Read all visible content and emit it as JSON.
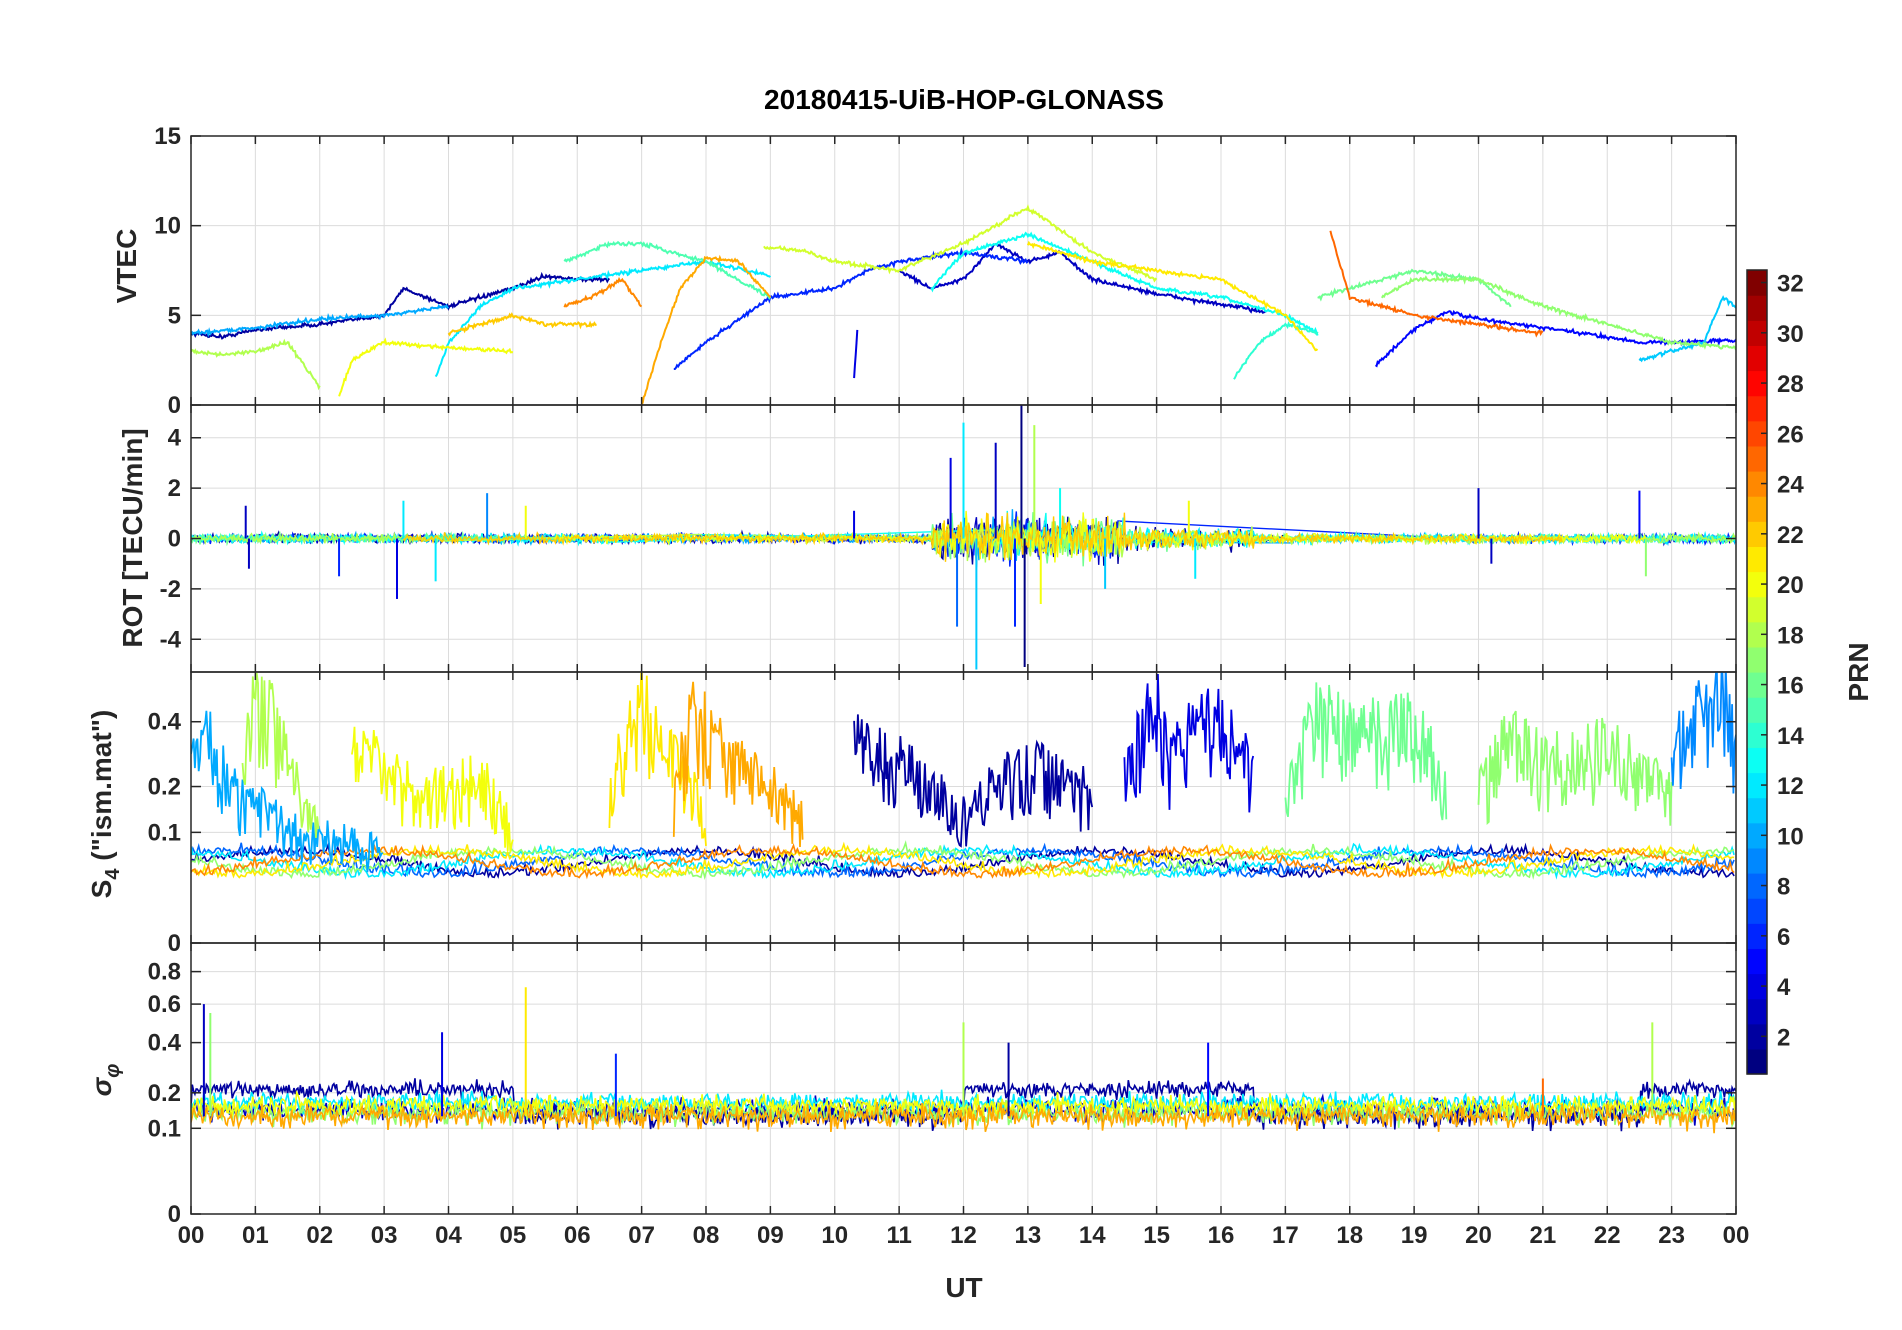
{
  "title": "20180415-UiB-HOP-GLONASS",
  "colors": {
    "axis": "#262626",
    "grid": "#dcdcdc",
    "background": "#ffffff"
  },
  "chart_data": [
    {
      "id": "vtec",
      "type": "line",
      "ylabel": "VTEC",
      "ylim": [
        0,
        15
      ],
      "yticks": [
        "0",
        "5",
        "10",
        "15"
      ],
      "ytick_values": [
        0,
        5,
        10,
        15
      ],
      "legend": "colorbar PRN",
      "series": [
        {
          "name": "PRN 2",
          "prn": 2,
          "x": [
            0,
            0.5,
            1,
            2,
            3,
            3.3,
            4,
            5,
            5.5,
            6,
            6.5
          ],
          "y": [
            4.0,
            3.8,
            4.2,
            4.5,
            5.0,
            6.5,
            5.5,
            6.5,
            7.2,
            7.0,
            7.0
          ]
        },
        {
          "name": "PRN 3",
          "prn": 3,
          "x": [
            11.0,
            11.5,
            12.0,
            12.5,
            13.0,
            13.5,
            14.0,
            15.0,
            16.0,
            16.7
          ],
          "y": [
            7.5,
            6.5,
            7.0,
            9.0,
            8.0,
            8.5,
            7.0,
            6.2,
            5.6,
            5.2
          ]
        },
        {
          "name": "PRN 4",
          "prn": 4,
          "x": [
            10.3,
            10.35
          ],
          "y": [
            1.5,
            4.2
          ]
        },
        {
          "name": "PRN 5",
          "prn": 5,
          "x": [
            18.4,
            19.0,
            19.5,
            20.0,
            21.0,
            22.0,
            22.5,
            23.0,
            24.0
          ],
          "y": [
            2.2,
            4.2,
            5.2,
            4.8,
            4.3,
            3.8,
            3.5,
            3.5,
            3.6
          ]
        },
        {
          "name": "PRN 6",
          "prn": 6,
          "x": [
            7.5,
            8.0,
            9.0,
            10.0,
            10.5,
            11.0,
            12.0,
            13.0
          ],
          "y": [
            2.0,
            3.5,
            6.0,
            6.5,
            7.5,
            8.0,
            8.5,
            8.0
          ]
        },
        {
          "name": "PRN 10",
          "prn": 10,
          "x": [
            0,
            1.0,
            2.0,
            3.0,
            4.0
          ],
          "y": [
            4.0,
            4.3,
            4.8,
            5.0,
            5.5
          ]
        },
        {
          "name": "PRN 11",
          "prn": 11,
          "x": [
            22.5,
            23.0,
            23.5,
            23.8,
            24.0
          ],
          "y": [
            2.5,
            3.0,
            3.5,
            6.0,
            5.5
          ]
        },
        {
          "name": "PRN 12",
          "prn": 12,
          "x": [
            3.8,
            4.0,
            4.5,
            5.0,
            6.0,
            7.0,
            8.0,
            9.0
          ],
          "y": [
            1.5,
            3.5,
            5.5,
            6.5,
            7.0,
            7.5,
            8.0,
            7.2
          ]
        },
        {
          "name": "PRN 13",
          "prn": 13,
          "x": [
            11.5,
            12.0,
            13.0,
            14.0,
            15.0,
            16.0,
            17.0,
            17.5
          ],
          "y": [
            6.5,
            8.5,
            9.5,
            8.0,
            6.5,
            6.0,
            5.0,
            4.0
          ]
        },
        {
          "name": "PRN 14",
          "prn": 14,
          "x": [
            16.2,
            16.6,
            17.0,
            17.5
          ],
          "y": [
            1.5,
            3.5,
            4.5,
            4.0
          ]
        },
        {
          "name": "PRN 15",
          "prn": 15,
          "x": [
            5.8,
            6.5,
            7.0,
            7.5,
            8.0,
            9.0
          ],
          "y": [
            8.0,
            9.0,
            9.0,
            8.5,
            8.0,
            6.0
          ]
        },
        {
          "name": "PRN 16",
          "prn": 16,
          "x": [
            17.5,
            18.0,
            19.0,
            20.0,
            20.5
          ],
          "y": [
            6.0,
            6.5,
            7.5,
            7.0,
            5.5
          ]
        },
        {
          "name": "PRN 17",
          "prn": 17,
          "x": [
            18.5,
            19.0,
            20.0,
            21.0,
            22.0,
            23.0,
            24.0
          ],
          "y": [
            6.0,
            7.0,
            7.0,
            5.5,
            4.5,
            3.5,
            3.2
          ]
        },
        {
          "name": "PRN 18",
          "prn": 18,
          "x": [
            0,
            0.5,
            1.0,
            1.5,
            2.0
          ],
          "y": [
            3.0,
            2.8,
            3.0,
            3.5,
            1.0
          ]
        },
        {
          "name": "PRN 19",
          "prn": 19,
          "x": [
            8.9,
            9.5,
            10.0,
            11.0,
            12.0,
            13.0,
            14.0,
            15.0
          ],
          "y": [
            8.8,
            8.6,
            8.0,
            7.5,
            9.0,
            11.0,
            8.5,
            7.0
          ]
        },
        {
          "name": "PRN 20",
          "prn": 20,
          "x": [
            2.3,
            2.5,
            3.0,
            4.0,
            5.0
          ],
          "y": [
            0.5,
            2.5,
            3.5,
            3.2,
            3.0
          ]
        },
        {
          "name": "PRN 21",
          "prn": 21,
          "x": [
            13.0,
            14.0,
            15.0,
            16.0,
            17.0,
            17.5
          ],
          "y": [
            9.0,
            8.0,
            7.5,
            7.0,
            5.0,
            3.0
          ]
        },
        {
          "name": "PRN 22",
          "prn": 22,
          "x": [
            4.0,
            4.5,
            5.0,
            5.5,
            6.0,
            6.3
          ],
          "y": [
            4.0,
            4.5,
            5.0,
            4.5,
            4.5,
            4.5
          ]
        },
        {
          "name": "PRN 23",
          "prn": 23,
          "x": [
            7.0,
            7.3,
            7.6,
            8.0,
            8.5,
            9.0
          ],
          "y": [
            0.0,
            3.5,
            6.5,
            8.2,
            8.0,
            6.0
          ]
        },
        {
          "name": "PRN 24",
          "prn": 24,
          "x": [
            5.8,
            6.2,
            6.7,
            7.0
          ],
          "y": [
            5.5,
            6.0,
            7.0,
            5.5
          ]
        },
        {
          "name": "PRN 25",
          "prn": 25,
          "x": [
            17.7,
            18.0,
            19.0,
            20.0,
            21.0
          ],
          "y": [
            9.7,
            6.0,
            5.0,
            4.5,
            4.0
          ]
        }
      ]
    },
    {
      "id": "rot",
      "type": "line",
      "ylabel": "ROT [TECU/min]",
      "ylim": [
        -5.3,
        5.3
      ],
      "yticks": [
        "-4",
        "-2",
        "0",
        "2",
        "4"
      ],
      "ytick_values": [
        -4,
        -2,
        0,
        2,
        4
      ],
      "spikes": [
        {
          "prn": 3,
          "x": 0.85,
          "y": 1.3
        },
        {
          "prn": 3,
          "x": 0.9,
          "y": -1.2
        },
        {
          "prn": 6,
          "x": 2.3,
          "y": -1.5
        },
        {
          "prn": 4,
          "x": 3.2,
          "y": -2.4
        },
        {
          "prn": 12,
          "x": 3.3,
          "y": 1.5
        },
        {
          "prn": 12,
          "x": 3.8,
          "y": -1.7
        },
        {
          "prn": 9,
          "x": 4.6,
          "y": 1.8
        },
        {
          "prn": 20,
          "x": 5.2,
          "y": 1.3
        },
        {
          "prn": 4,
          "x": 10.3,
          "y": 1.1
        },
        {
          "prn": 4,
          "x": 11.8,
          "y": 3.2
        },
        {
          "prn": 8,
          "x": 11.9,
          "y": -3.5
        },
        {
          "prn": 12,
          "x": 12.0,
          "y": 4.6
        },
        {
          "prn": 11,
          "x": 12.2,
          "y": -5.2
        },
        {
          "prn": 3,
          "x": 12.5,
          "y": 3.8
        },
        {
          "prn": 6,
          "x": 12.8,
          "y": -3.5
        },
        {
          "prn": 1,
          "x": 12.9,
          "y": 5.3
        },
        {
          "prn": 1,
          "x": 12.95,
          "y": -5.1
        },
        {
          "prn": 18,
          "x": 13.1,
          "y": 4.5
        },
        {
          "prn": 20,
          "x": 13.2,
          "y": -2.6
        },
        {
          "prn": 13,
          "x": 13.5,
          "y": 2.0
        },
        {
          "prn": 11,
          "x": 14.2,
          "y": -2.0
        },
        {
          "prn": 20,
          "x": 15.5,
          "y": 1.5
        },
        {
          "prn": 12,
          "x": 15.6,
          "y": -1.6
        },
        {
          "prn": 3,
          "x": 20.0,
          "y": 2.0
        },
        {
          "prn": 3,
          "x": 20.2,
          "y": -1.0
        },
        {
          "prn": 5,
          "x": 22.5,
          "y": 1.9
        },
        {
          "prn": 17,
          "x": 22.6,
          "y": -1.5
        }
      ]
    },
    {
      "id": "s4",
      "type": "line",
      "ylabel": "S4 (\"ism.mat\")",
      "ylabel_base": "S",
      "ylabel_sub": "4",
      "ylabel_suffix": " (\"ism.mat\")",
      "ylim": [
        0,
        0.6
      ],
      "yscale": "sqrt",
      "yticks": [
        "0",
        "0.1",
        "0.2",
        "0.4"
      ],
      "ytick_values": [
        0,
        0.1,
        0.2,
        0.4
      ],
      "series_summary": [
        {
          "prn": 10,
          "x": [
            0,
            0.3,
            0.6,
            1.5,
            3.0
          ],
          "y": [
            0.3,
            0.4,
            0.22,
            0.12,
            0.08
          ]
        },
        {
          "prn": 18,
          "x": [
            0.8,
            1.0,
            1.2,
            1.6,
            2.0
          ],
          "y": [
            0.3,
            0.55,
            0.5,
            0.25,
            0.1
          ]
        },
        {
          "prn": 20,
          "x": [
            2.5,
            3.0,
            3.5,
            4.5,
            5.0
          ],
          "y": [
            0.35,
            0.3,
            0.2,
            0.25,
            0.12
          ]
        },
        {
          "prn": 21,
          "x": [
            6.5,
            7.0,
            7.2,
            7.5,
            8.0
          ],
          "y": [
            0.2,
            0.55,
            0.4,
            0.3,
            0.15
          ]
        },
        {
          "prn": 23,
          "x": [
            7.5,
            7.8,
            8.2,
            8.8,
            9.5
          ],
          "y": [
            0.2,
            0.5,
            0.35,
            0.25,
            0.15
          ]
        },
        {
          "prn": 2,
          "x": [
            10.3,
            11.0,
            12.0,
            13.0,
            14.0
          ],
          "y": [
            0.4,
            0.3,
            0.15,
            0.3,
            0.2
          ]
        },
        {
          "prn": 4,
          "x": [
            14.5,
            15.0,
            15.2,
            15.8,
            16.5
          ],
          "y": [
            0.25,
            0.55,
            0.3,
            0.5,
            0.28
          ]
        },
        {
          "prn": 16,
          "x": [
            17.0,
            17.5,
            18.5,
            19.0,
            19.5
          ],
          "y": [
            0.2,
            0.5,
            0.4,
            0.45,
            0.25
          ]
        },
        {
          "prn": 17,
          "x": [
            20.0,
            20.5,
            21.0,
            22.0,
            23.0
          ],
          "y": [
            0.2,
            0.4,
            0.3,
            0.35,
            0.2
          ]
        },
        {
          "prn": 9,
          "x": [
            23.0,
            23.5,
            23.8,
            24.0
          ],
          "y": [
            0.35,
            0.5,
            0.6,
            0.3
          ]
        }
      ]
    },
    {
      "id": "sigma_phi",
      "type": "line",
      "ylabel": "σφ",
      "ylabel_base": "σ",
      "ylabel_sub": "φ",
      "ylim": [
        0,
        1
      ],
      "yscale": "sqrt",
      "yticks": [
        "0",
        "0.1",
        "0.2",
        "0.4",
        "0.6",
        "0.8"
      ],
      "ytick_values": [
        0,
        0.1,
        0.2,
        0.4,
        0.6,
        0.8
      ],
      "spikes": [
        {
          "prn": 3,
          "x": 0.2,
          "y": 0.6
        },
        {
          "prn": 17,
          "x": 0.3,
          "y": 0.55
        },
        {
          "prn": 4,
          "x": 3.9,
          "y": 0.45
        },
        {
          "prn": 21,
          "x": 5.2,
          "y": 0.7
        },
        {
          "prn": 6,
          "x": 6.6,
          "y": 0.35
        },
        {
          "prn": 18,
          "x": 12.0,
          "y": 0.5
        },
        {
          "prn": 2,
          "x": 12.7,
          "y": 0.4
        },
        {
          "prn": 5,
          "x": 15.8,
          "y": 0.4
        },
        {
          "prn": 25,
          "x": 21.0,
          "y": 0.25
        },
        {
          "prn": 18,
          "x": 22.7,
          "y": 0.5
        }
      ]
    }
  ],
  "x_axis": {
    "xlabel": "UT",
    "xlim": [
      0,
      24
    ],
    "tick_labels": [
      "00",
      "01",
      "02",
      "03",
      "04",
      "05",
      "06",
      "07",
      "08",
      "09",
      "10",
      "11",
      "12",
      "13",
      "14",
      "15",
      "16",
      "17",
      "18",
      "19",
      "20",
      "21",
      "22",
      "23",
      "00"
    ]
  },
  "colorbar": {
    "label": "PRN",
    "range": [
      1,
      32
    ],
    "tick_labels": [
      "2",
      "4",
      "6",
      "8",
      "10",
      "12",
      "14",
      "16",
      "18",
      "20",
      "22",
      "24",
      "26",
      "28",
      "30",
      "32"
    ],
    "tick_values": [
      2,
      4,
      6,
      8,
      10,
      12,
      14,
      16,
      18,
      20,
      22,
      24,
      26,
      28,
      30,
      32
    ],
    "colormap": "jet"
  }
}
